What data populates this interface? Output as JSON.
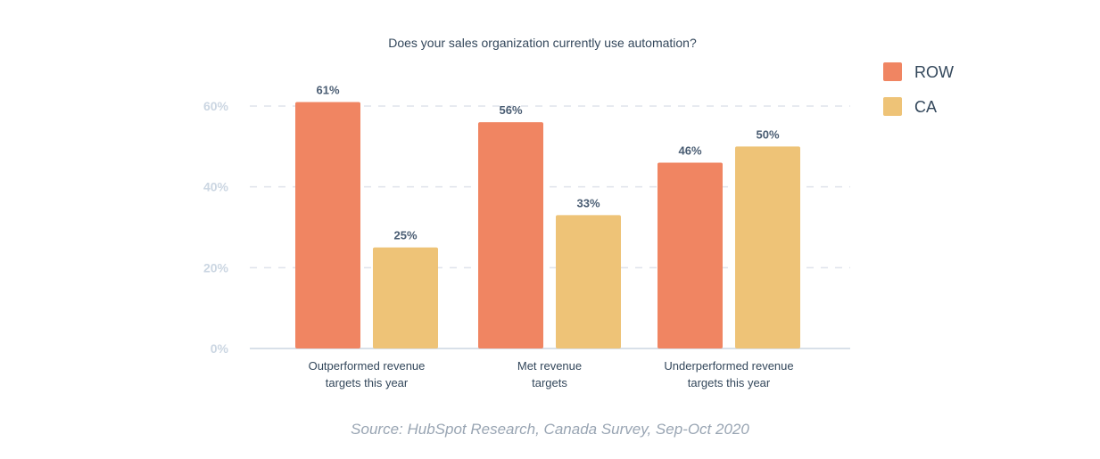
{
  "chart_data": {
    "type": "bar",
    "title": "Does your sales organization currently use automation?",
    "categories": [
      [
        "Outperformed revenue",
        "targets this year"
      ],
      [
        "Met revenue",
        "targets"
      ],
      [
        "Underperformed revenue",
        "targets this year"
      ]
    ],
    "series": [
      {
        "name": "ROW",
        "color": "#f08562",
        "values": [
          61,
          56,
          46
        ],
        "labels": [
          "61%",
          "56%",
          "46%"
        ]
      },
      {
        "name": "CA",
        "color": "#eec377",
        "values": [
          25,
          33,
          50
        ],
        "labels": [
          "25%",
          "33%",
          "50%"
        ]
      }
    ],
    "yticks": [
      0,
      20,
      40,
      60
    ],
    "ytick_labels": [
      "0%",
      "20%",
      "40%",
      "60%"
    ],
    "ylim": [
      0,
      60
    ],
    "grid": true,
    "legend": "top-right"
  },
  "source": "Source: HubSpot Research, Canada Survey, Sep-Oct 2020"
}
